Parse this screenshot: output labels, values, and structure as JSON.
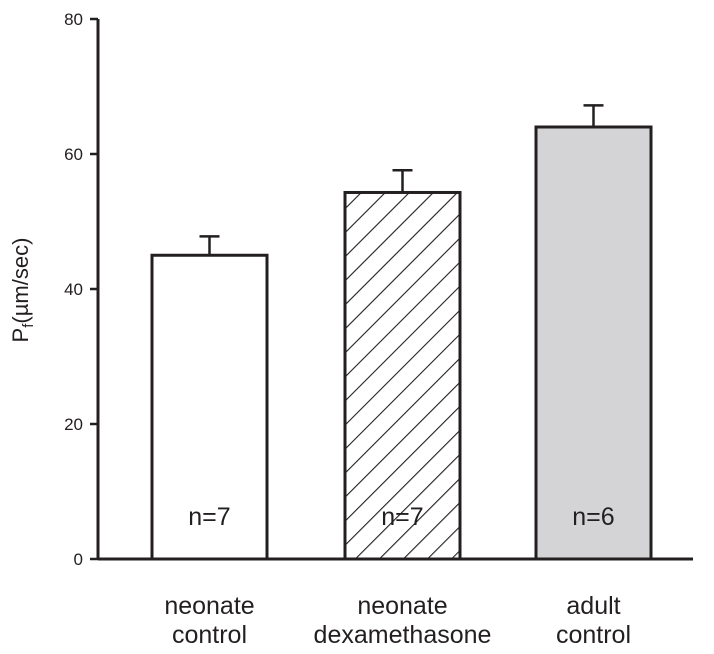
{
  "chart_data": {
    "type": "bar",
    "title": "",
    "xlabel": "",
    "ylabel": {
      "main": "P",
      "subscript": "f",
      "units": "(µm/sec)"
    },
    "ylim": [
      0,
      80
    ],
    "yticks": [
      "0",
      "20",
      "40",
      "60",
      "80"
    ],
    "categories": [
      {
        "line1": "neonate",
        "line2": "control"
      },
      {
        "line1": "neonate",
        "line2": "dexamethasone"
      },
      {
        "line1": "adult",
        "line2": "control"
      }
    ],
    "values": [
      45,
      54.3,
      64
    ],
    "errors": [
      2.8,
      3.3,
      3.2
    ],
    "n_labels": [
      "n=7",
      "n=7",
      "n=6"
    ],
    "fills": [
      "white",
      "hatched",
      "gray"
    ],
    "colors": {
      "axis": "#231f20",
      "gray_fill": "#d4d4d6",
      "white_fill": "#ffffff"
    },
    "grid": false
  }
}
